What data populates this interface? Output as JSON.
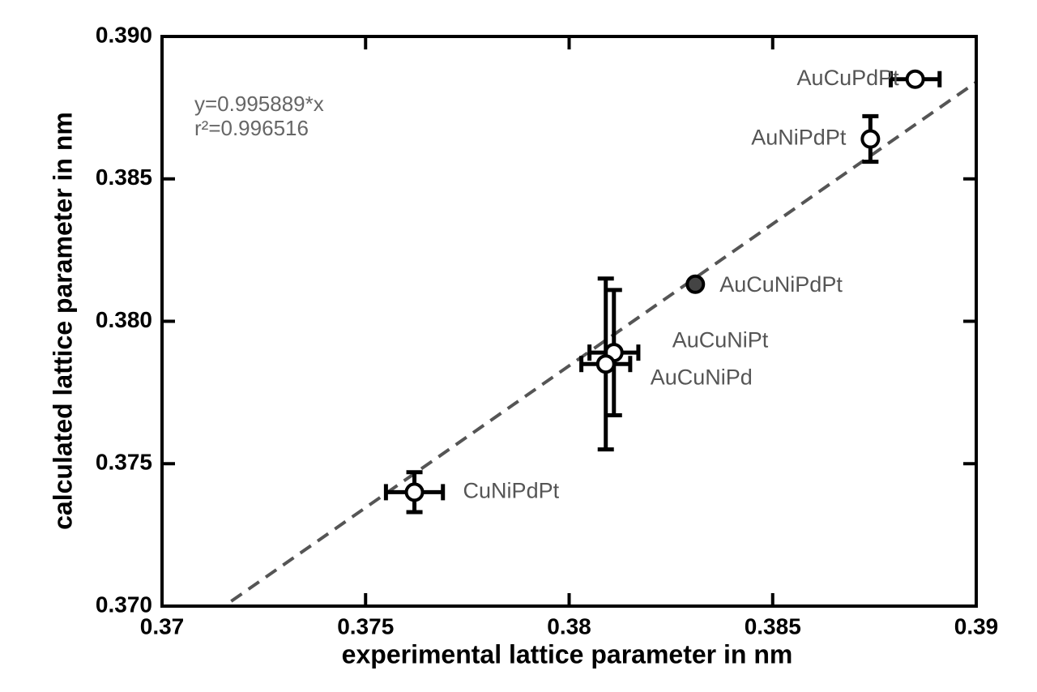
{
  "chart_data": {
    "type": "scatter",
    "xlabel": "experimental lattice parameter in nm",
    "ylabel": "calculated lattice parameter in nm",
    "annotations": [
      "y=0.995889*x",
      "r²=0.996516"
    ],
    "fit_slope": 0.995889,
    "xlim": [
      0.37,
      0.39
    ],
    "ylim": [
      0.37,
      0.39
    ],
    "xticks": [
      0.37,
      0.375,
      0.38,
      0.385,
      0.39
    ],
    "yticks": [
      {
        "value": 0.37,
        "label": "0.370"
      },
      0.375,
      {
        "value": 0.38,
        "label": "0.380"
      },
      0.385,
      {
        "value": 0.39,
        "label": "0.390"
      }
    ],
    "points": [
      {
        "name": "AuCuPdPt",
        "x": 0.3885,
        "y": 0.3885,
        "xerr": 0.0006,
        "yerr": null,
        "color": "#ffffff"
      },
      {
        "name": "AuNiPdPt",
        "x": 0.3874,
        "y": 0.3864,
        "xerr": null,
        "yerr": 0.0008,
        "color": "#ffffff"
      },
      {
        "name": "AuCuNiPdPt",
        "x": 0.3831,
        "y": 0.3813,
        "xerr": null,
        "yerr": null,
        "color": "#444444"
      },
      {
        "name": "AuCuNiPt",
        "x": 0.3811,
        "y": 0.3789,
        "xerr": 0.0006,
        "yerr": 0.0022,
        "color": "#ffffff"
      },
      {
        "name": "AuCuNiPd",
        "x": 0.3809,
        "y": 0.3785,
        "xerr": 0.0006,
        "yerr": 0.003,
        "color": "#ffffff"
      },
      {
        "name": "CuNiPdPt",
        "x": 0.3762,
        "y": 0.374,
        "xerr": 0.0007,
        "yerr": 0.0007,
        "color": "#ffffff"
      }
    ]
  }
}
